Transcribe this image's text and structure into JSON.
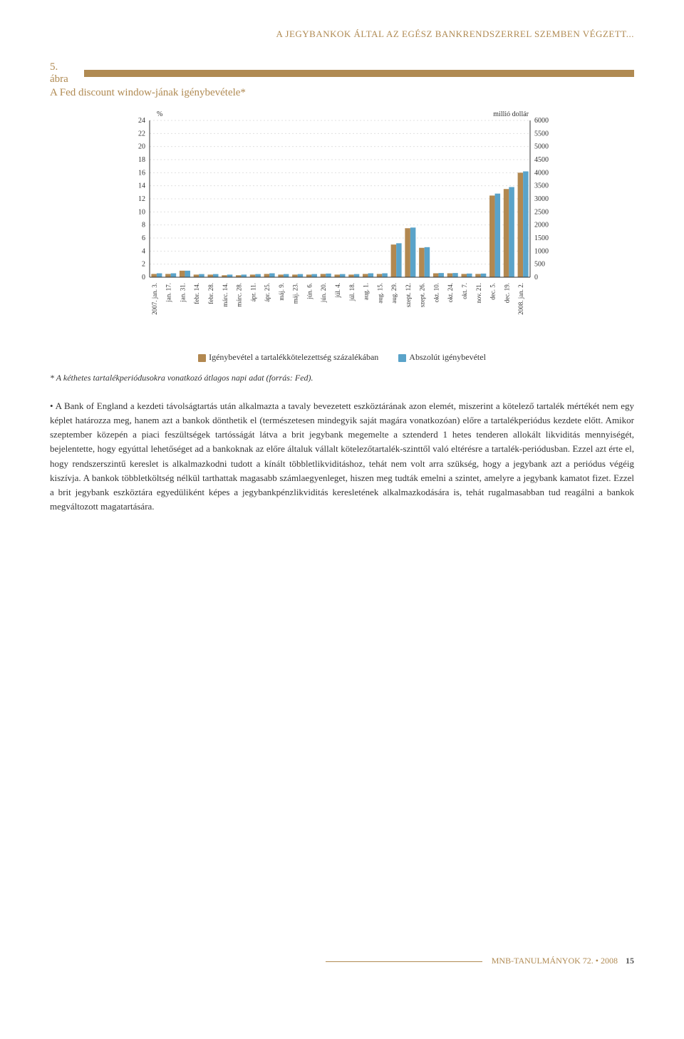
{
  "running_head": "A JEGYBANKOK ÁLTAL AZ EGÉSZ BANKRENDSZERREL SZEMBEN VÉGZETT...",
  "figure": {
    "number_label": "5. ábra",
    "title": "A Fed discount window-jának igénybevétele*",
    "chart": {
      "type": "bar-dual-axis",
      "background_color": "#ffffff",
      "grid_color": "#e0e0e0",
      "grid_dash": "2 3",
      "axis_color": "#333333",
      "tick_fontsize": 9,
      "left_axis": {
        "unit_label": "%",
        "min": 0,
        "max": 24,
        "step": 2,
        "label_fontsize": 10
      },
      "right_axis": {
        "unit_label": "millió dollár",
        "min": 0,
        "max": 6000,
        "step": 500,
        "label_fontsize": 10
      },
      "categories": [
        "2007. jan. 3.",
        "jan. 17.",
        "jan. 31.",
        "febr. 14.",
        "febr. 28.",
        "márc. 14.",
        "márc. 28.",
        "ápr. 11.",
        "ápr. 25.",
        "máj. 9.",
        "máj. 23.",
        "jún. 6.",
        "jún. 20.",
        "júl. 4.",
        "júl. 18.",
        "aug. 1.",
        "aug. 15.",
        "aug. 29.",
        "szept. 12.",
        "szept. 26.",
        "okt. 10.",
        "okt. 24.",
        "okt. 7.",
        "nov. 21.",
        "dec. 5.",
        "dec. 19.",
        "2008. jan. 2."
      ],
      "series": [
        {
          "key": "reserve_pct",
          "label": "Igénybevétel a tartalékkötelezettség százalékában",
          "color": "#b28850",
          "axis": "left",
          "values": [
            0.5,
            0.5,
            1.0,
            0.4,
            0.4,
            0.3,
            0.3,
            0.4,
            0.5,
            0.4,
            0.4,
            0.4,
            0.5,
            0.4,
            0.4,
            0.5,
            0.5,
            5.0,
            7.5,
            4.5,
            0.6,
            0.6,
            0.5,
            0.5,
            12.5,
            13.5,
            16.0
          ]
        },
        {
          "key": "abs_usd",
          "label": "Abszolút igénybevétel",
          "color": "#5aa3c9",
          "axis": "right",
          "values": [
            150,
            150,
            250,
            120,
            120,
            100,
            100,
            120,
            150,
            120,
            120,
            120,
            140,
            120,
            120,
            150,
            150,
            1300,
            1900,
            1150,
            160,
            160,
            140,
            140,
            3200,
            3450,
            4050
          ]
        }
      ]
    },
    "footnote": "* A kéthetes tartalékperiódusokra vonatkozó átlagos napi adat (forrás: Fed)."
  },
  "body_paragraph": "• A Bank of England a kezdeti távolságtartás után alkalmazta a tavaly bevezetett eszköztárának azon elemét, miszerint a kötelező tartalék mértékét nem egy képlet határozza meg, hanem azt a bankok dönthetik el (természetesen mindegyik saját magára vonatkozóan) előre a tartalékperiódus kezdete előtt. Amikor szeptember közepén a piaci feszültségek tartósságát látva a brit jegybank megemelte a sztenderd 1 hetes tenderen allokált likviditás mennyiségét, bejelentette, hogy egyúttal lehetőséget ad a bankoknak az előre általuk vállalt kötelezőtartalék-szinttől való eltérésre a tartalék-periódusban. Ezzel azt érte el, hogy rendszerszintű kereslet is alkalmazkodni tudott a kínált többletlikviditáshoz, tehát nem volt arra szükség, hogy a jegybank azt a periódus végéig kiszívja. A bankok többletköltség nélkül tarthattak magasabb számlaegyenleget, hiszen meg tudták emelni a szintet, amelyre a jegybank kamatot fizet. Ezzel a brit jegybank eszköztára egyedüliként képes a jegybankpénzlikviditás keresletének alkalmazkodására is, tehát rugalmasabban tud reagálni a bankok megváltozott magatartására.",
  "footer": {
    "label": "MNB-TANULMÁNYOK 72. • 2008",
    "page": "15"
  }
}
